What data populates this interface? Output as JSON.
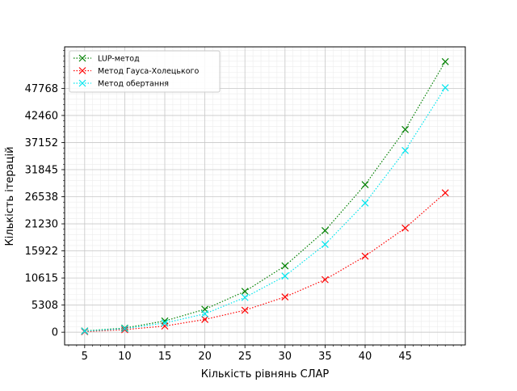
{
  "chart_data": {
    "type": "line",
    "title": "",
    "xlabel": "Кількість рівнянь СЛАР",
    "ylabel": "Кількість ітерацій",
    "x_ticks": [
      5,
      10,
      15,
      20,
      25,
      30,
      35,
      40,
      45
    ],
    "y_ticks": [
      0,
      5308,
      10615,
      15922,
      21230,
      26538,
      31845,
      37152,
      42460,
      47768
    ],
    "xlim": [
      2.5,
      52.5
    ],
    "ylim": [
      -2500,
      55900
    ],
    "grid": "major and minor",
    "legend_position": "top-left",
    "x": [
      5,
      10,
      15,
      20,
      25,
      30,
      35,
      40,
      45,
      50
    ],
    "series": [
      {
        "name": "LUP-метод",
        "color": "#008000",
        "values": [
          250,
          800,
          2200,
          4500,
          8000,
          13000,
          19900,
          28900,
          39700,
          53000
        ]
      },
      {
        "name": "Метод Гауса-Холецького",
        "color": "#ff0000",
        "values": [
          100,
          500,
          1200,
          2500,
          4300,
          6900,
          10300,
          14900,
          20400,
          27300
        ]
      },
      {
        "name": "Метод обертання",
        "color": "#00e5ee",
        "values": [
          200,
          700,
          1800,
          3600,
          6800,
          11000,
          17200,
          25300,
          35600,
          47900
        ]
      }
    ]
  }
}
